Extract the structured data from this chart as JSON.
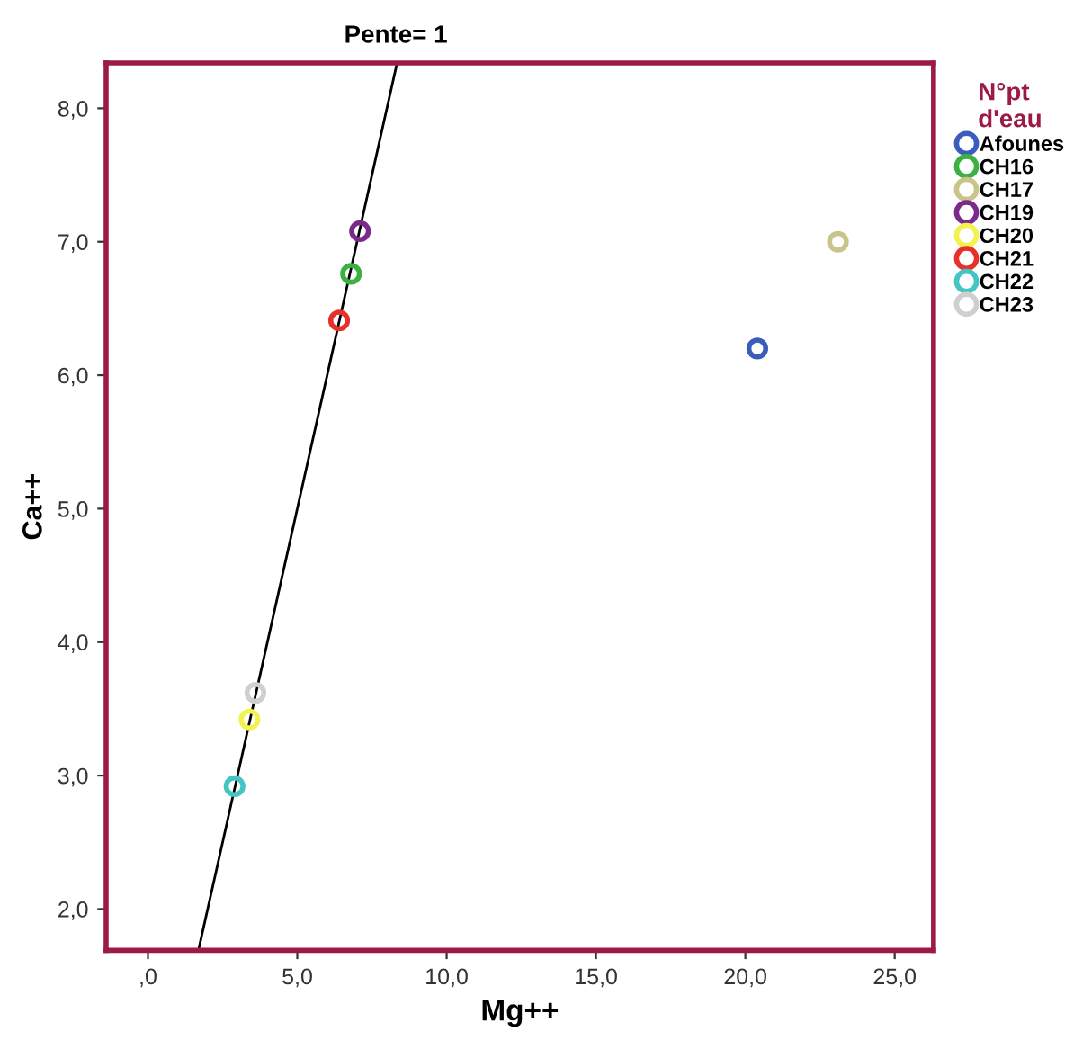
{
  "chart_data": {
    "type": "scatter",
    "xlabel": "Mg++",
    "ylabel": "Ca++",
    "legend_title": "N°pt\nd'eau",
    "legend": "right",
    "marker": "circle",
    "grid": false,
    "xlim": [
      -1.4,
      26.3
    ],
    "ylim": [
      1.69,
      8.34
    ],
    "xticks": [
      {
        "value": 0,
        "label": ",0"
      },
      {
        "value": 5,
        "label": "5,0"
      },
      {
        "value": 10,
        "label": "10,0"
      },
      {
        "value": 15,
        "label": "15,0"
      },
      {
        "value": 20,
        "label": "20,0"
      },
      {
        "value": 25,
        "label": "25,0"
      }
    ],
    "yticks": [
      {
        "value": 2,
        "label": "2,0"
      },
      {
        "value": 3,
        "label": "3,0"
      },
      {
        "value": 4,
        "label": "4,0"
      },
      {
        "value": 5,
        "label": "5,0"
      },
      {
        "value": 6,
        "label": "6,0"
      },
      {
        "value": 7,
        "label": "7,0"
      },
      {
        "value": 8,
        "label": "8,0"
      }
    ],
    "annotations": [
      {
        "text": "Pente= 1",
        "x": 8.3,
        "y": 8.34
      }
    ],
    "series": [
      {
        "name": "Afounes",
        "color": "#3a5dba",
        "x": [
          20.4
        ],
        "values": [
          6.2
        ]
      },
      {
        "name": "CH16",
        "color": "#3cb043",
        "x": [
          6.8
        ],
        "values": [
          6.76
        ]
      },
      {
        "name": "CH17",
        "color": "#c8c48a",
        "x": [
          23.1
        ],
        "values": [
          7.0
        ]
      },
      {
        "name": "CH19",
        "color": "#7b2a8c",
        "x": [
          7.1
        ],
        "values": [
          7.08
        ]
      },
      {
        "name": "CH20",
        "color": "#f2f250",
        "x": [
          3.4
        ],
        "values": [
          3.42
        ]
      },
      {
        "name": "CH21",
        "color": "#e8302a",
        "x": [
          6.4
        ],
        "values": [
          6.41
        ]
      },
      {
        "name": "CH22",
        "color": "#45c4c4",
        "x": [
          2.9
        ],
        "values": [
          2.92
        ]
      },
      {
        "name": "CH23",
        "color": "#cfcfcf",
        "x": [
          3.6
        ],
        "values": [
          3.62
        ]
      },
      {
        "type": "line",
        "marker": "none",
        "color": "#000000",
        "x": [
          1.69,
          8.34
        ],
        "values": [
          1.69,
          8.34
        ]
      }
    ]
  }
}
